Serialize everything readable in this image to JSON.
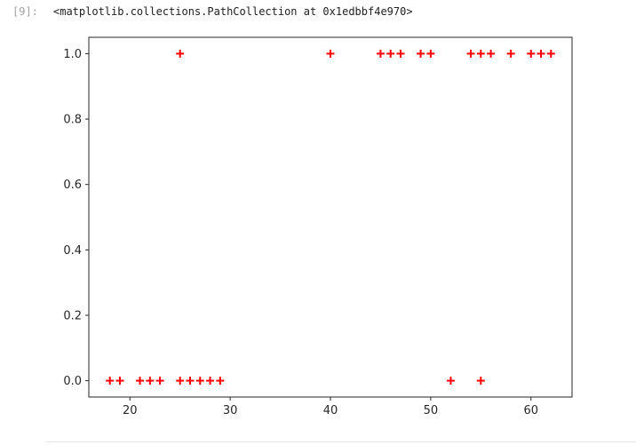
{
  "cell": {
    "prompt": "[9]:",
    "output_text": "<matplotlib.collections.PathCollection at 0x1edbbf4e970>"
  },
  "chart_data": {
    "type": "scatter",
    "marker": "+",
    "color": "#ff0000",
    "xlim": [
      15.9,
      64.1
    ],
    "ylim": [
      -0.05,
      1.05
    ],
    "xticks": [
      20,
      30,
      40,
      50,
      60
    ],
    "xtick_labels": [
      "20",
      "30",
      "40",
      "50",
      "60"
    ],
    "yticks": [
      0.0,
      0.2,
      0.4,
      0.6,
      0.8,
      1.0
    ],
    "ytick_labels": [
      "0.0",
      "0.2",
      "0.4",
      "0.6",
      "0.8",
      "1.0"
    ],
    "grid": false,
    "points": [
      {
        "x": 18,
        "y": 0
      },
      {
        "x": 19,
        "y": 0
      },
      {
        "x": 21,
        "y": 0
      },
      {
        "x": 22,
        "y": 0
      },
      {
        "x": 23,
        "y": 0
      },
      {
        "x": 25,
        "y": 0
      },
      {
        "x": 26,
        "y": 0
      },
      {
        "x": 27,
        "y": 0
      },
      {
        "x": 28,
        "y": 0
      },
      {
        "x": 29,
        "y": 0
      },
      {
        "x": 52,
        "y": 0
      },
      {
        "x": 55,
        "y": 0
      },
      {
        "x": 25,
        "y": 1
      },
      {
        "x": 40,
        "y": 1
      },
      {
        "x": 45,
        "y": 1
      },
      {
        "x": 46,
        "y": 1
      },
      {
        "x": 47,
        "y": 1
      },
      {
        "x": 49,
        "y": 1
      },
      {
        "x": 50,
        "y": 1
      },
      {
        "x": 54,
        "y": 1
      },
      {
        "x": 55,
        "y": 1
      },
      {
        "x": 56,
        "y": 1
      },
      {
        "x": 58,
        "y": 1
      },
      {
        "x": 60,
        "y": 1
      },
      {
        "x": 61,
        "y": 1
      },
      {
        "x": 62,
        "y": 1
      }
    ]
  }
}
